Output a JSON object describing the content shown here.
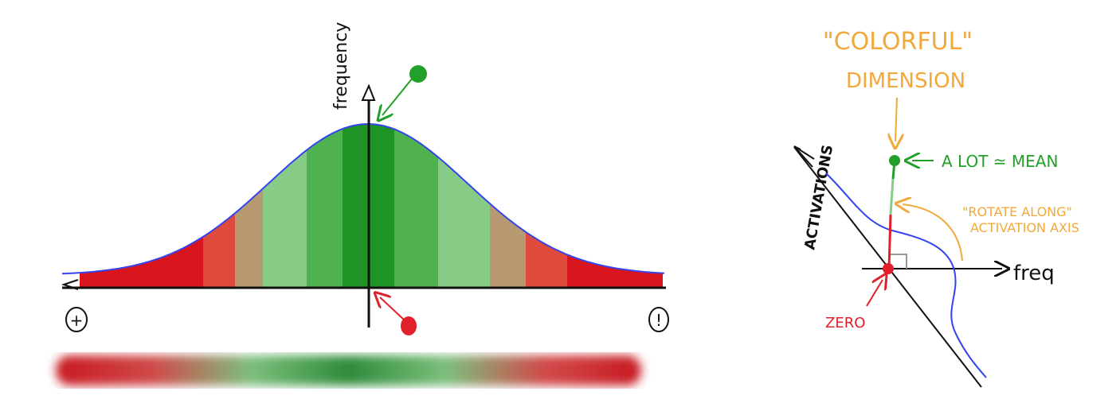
{
  "left_diagram": {
    "y_axis_label": "frequency",
    "left_symbol": "+",
    "right_symbol": "!",
    "bands": [
      {
        "color": "#d8141c"
      },
      {
        "color": "#de4a3c"
      },
      {
        "color": "#b89a72"
      },
      {
        "color": "#86cc86"
      },
      {
        "color": "#4fb24f"
      },
      {
        "color": "#1e9326"
      },
      {
        "color": "#4fb24f"
      },
      {
        "color": "#86cc86"
      },
      {
        "color": "#b89a72"
      },
      {
        "color": "#de4a3c"
      },
      {
        "color": "#d8141c"
      }
    ],
    "curve_color": "#3344ee",
    "gradient_strip_colors": [
      "#c81a22",
      "#d04a4a",
      "#7cbf7c",
      "#2e8b3a",
      "#7cbf7c",
      "#d04a4a",
      "#c81a22"
    ]
  },
  "right_diagram": {
    "title_line1": "\"COLORFUL\"",
    "title_line2": "DIMENSION",
    "mean_label": "A LOT ≃ MEAN",
    "rotate_line1": "\"ROTATE ALONG\"",
    "rotate_line2": "ACTIVATION AXIS",
    "activations_label": "ACTIVATIONS",
    "freq_label": "freq",
    "zero_label": "ZERO",
    "colors": {
      "orange": "#f2a83a",
      "green": "#22a02a",
      "red": "#e0202a",
      "blue": "#3344ee"
    }
  }
}
